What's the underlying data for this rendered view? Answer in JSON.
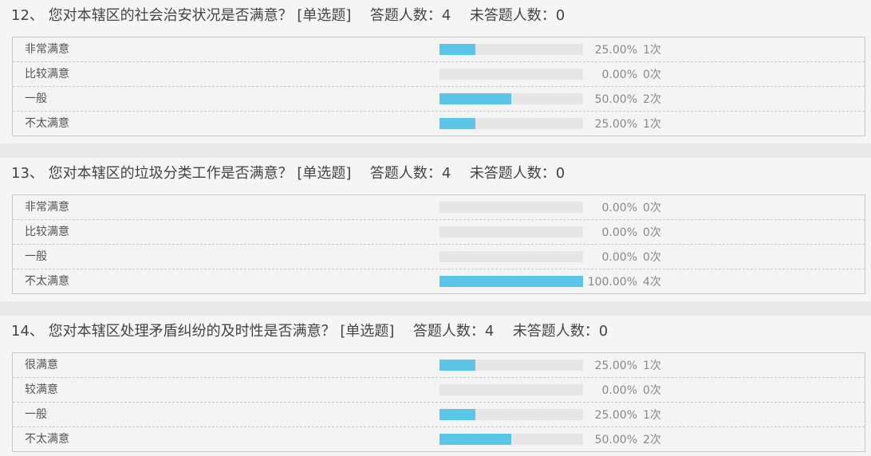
{
  "questions": [
    {
      "number": "12、",
      "text": "您对本辖区的社会治安状况是否满意？",
      "type": "[单选题]",
      "answered": "答题人数：4",
      "unanswered": "未答题人数：0",
      "options": [
        {
          "label": "非常满意",
          "percent": "25.00%",
          "count": "1次",
          "fill": 0.25
        },
        {
          "label": "比较满意",
          "percent": "0.00%",
          "count": "0次",
          "fill": 0
        },
        {
          "label": "一般",
          "percent": "50.00%",
          "count": "2次",
          "fill": 0.5
        },
        {
          "label": "不太满意",
          "percent": "25.00%",
          "count": "1次",
          "fill": 0.25
        }
      ]
    },
    {
      "number": "13、",
      "text": "您对本辖区的垃圾分类工作是否满意？",
      "type": "[单选题]",
      "answered": "答题人数：4",
      "unanswered": "未答题人数：0",
      "options": [
        {
          "label": "非常满意",
          "percent": "0.00%",
          "count": "0次",
          "fill": 0
        },
        {
          "label": "比较满意",
          "percent": "0.00%",
          "count": "0次",
          "fill": 0
        },
        {
          "label": "一般",
          "percent": "0.00%",
          "count": "0次",
          "fill": 0
        },
        {
          "label": "不太满意",
          "percent": "100.00%",
          "count": "4次",
          "fill": 1
        }
      ]
    },
    {
      "number": "14、",
      "text": "您对本辖区处理矛盾纠纷的及时性是否满意？",
      "type": "[单选题]",
      "answered": "答题人数：4",
      "unanswered": "未答题人数：0",
      "options": [
        {
          "label": "很满意",
          "percent": "25.00%",
          "count": "1次",
          "fill": 0.25
        },
        {
          "label": "较满意",
          "percent": "0.00%",
          "count": "0次",
          "fill": 0
        },
        {
          "label": "一般",
          "percent": "25.00%",
          "count": "1次",
          "fill": 0.25
        },
        {
          "label": "不太满意",
          "percent": "50.00%",
          "count": "2次",
          "fill": 0.5
        }
      ]
    }
  ]
}
